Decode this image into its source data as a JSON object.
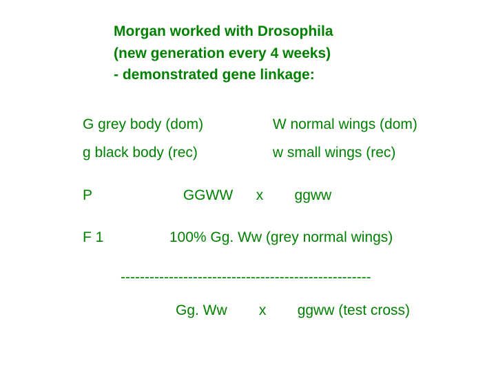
{
  "font_size_pt": 21,
  "text_color": "#008000",
  "background_color": "#ffffff",
  "header": {
    "line1": "Morgan worked with Drosophila",
    "line2": "(new generation every 4 weeks)",
    "line3": " -  demonstrated gene linkage:"
  },
  "alleles": {
    "row1_left": "G  grey body  (dom)",
    "row1_right": "W normal wings (dom)",
    "row2_left": "g   black body (rec)",
    "row2_right": "w  small wings (rec)"
  },
  "p_cross": {
    "label": "P",
    "genotype1": "GGWW",
    "x": "x",
    "genotype2": "ggww"
  },
  "f1": {
    "label": "F 1",
    "result": "100%  Gg. Ww  (grey normal wings)"
  },
  "divider": "----------------------------------------------------",
  "testcross": {
    "genotype1": "Gg. Ww",
    "x": "x",
    "genotype2": "ggww  (test cross)"
  }
}
